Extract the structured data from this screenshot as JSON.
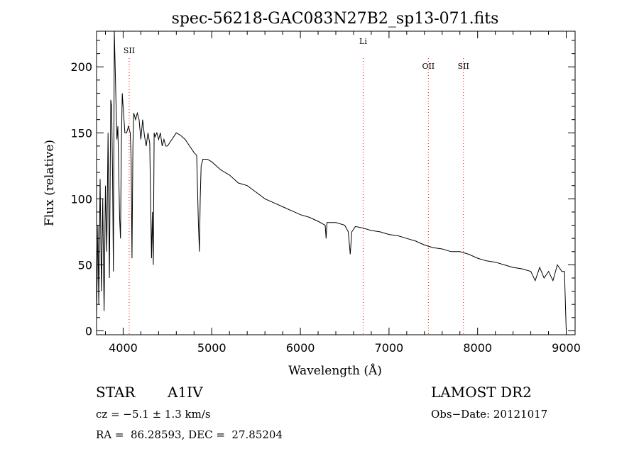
{
  "chart_data": {
    "type": "line",
    "title": "spec-56218-GAC083N27B2_sp13-071.fits",
    "xlabel": "Wavelength (Å)",
    "ylabel": "Flux (relative)",
    "xlim": [
      3700,
      9100
    ],
    "ylim": [
      -3,
      227
    ],
    "xticks": [
      4000,
      5000,
      6000,
      7000,
      8000,
      9000
    ],
    "yticks": [
      0,
      50,
      100,
      150,
      200
    ],
    "grid": false,
    "line_color": "#000000",
    "marker_color": "#ff0000",
    "line_markers": [
      {
        "label": "SII",
        "x": 4068
      },
      {
        "label": "Li",
        "x": 6708
      },
      {
        "label": "OII",
        "x": 7444
      },
      {
        "label": "SII",
        "x": 7840
      }
    ],
    "series": [
      {
        "x": [
          3700,
          3715,
          3725,
          3740,
          3755,
          3770,
          3785,
          3800,
          3815,
          3830,
          3845,
          3860,
          3870,
          3880,
          3890,
          3900,
          3910,
          3920,
          3930,
          3940,
          3950,
          3960,
          3970,
          3980,
          3990,
          4000,
          4020,
          4040,
          4060,
          4080,
          4090,
          4100,
          4110,
          4120,
          4140,
          4160,
          4180,
          4200,
          4220,
          4240,
          4260,
          4280,
          4300,
          4320,
          4330,
          4340,
          4350,
          4360,
          4380,
          4400,
          4420,
          4440,
          4460,
          4480,
          4500,
          4550,
          4600,
          4650,
          4700,
          4750,
          4800,
          4830,
          4850,
          4861,
          4870,
          4880,
          4900,
          4950,
          5000,
          5100,
          5200,
          5300,
          5400,
          5500,
          5600,
          5700,
          5800,
          5900,
          6000,
          6100,
          6200,
          6280,
          6290,
          6300,
          6400,
          6500,
          6540,
          6563,
          6580,
          6620,
          6700,
          6800,
          6900,
          7000,
          7100,
          7200,
          7300,
          7400,
          7500,
          7600,
          7700,
          7800,
          7900,
          8000,
          8100,
          8200,
          8300,
          8400,
          8500,
          8600,
          8650,
          8700,
          8750,
          8800,
          8850,
          8900,
          8950,
          8980,
          9000
        ],
        "values": [
          10,
          80,
          20,
          115,
          30,
          100,
          15,
          110,
          60,
          150,
          40,
          175,
          170,
          120,
          45,
          230,
          200,
          170,
          145,
          155,
          120,
          85,
          70,
          140,
          180,
          170,
          150,
          150,
          155,
          150,
          130,
          55,
          140,
          165,
          160,
          165,
          160,
          145,
          160,
          148,
          140,
          150,
          142,
          55,
          90,
          50,
          150,
          147,
          150,
          145,
          150,
          140,
          145,
          140,
          140,
          145,
          150,
          148,
          145,
          140,
          135,
          133,
          80,
          60,
          100,
          125,
          130,
          130,
          128,
          122,
          118,
          112,
          110,
          105,
          100,
          97,
          94,
          91,
          88,
          86,
          83,
          80,
          70,
          82,
          82,
          80,
          75,
          58,
          75,
          79,
          78,
          76,
          75,
          73,
          72,
          70,
          68,
          65,
          63,
          62,
          60,
          60,
          58,
          55,
          53,
          52,
          50,
          48,
          47,
          45,
          38,
          48,
          40,
          45,
          38,
          50,
          45,
          45,
          0
        ]
      }
    ]
  },
  "info": {
    "object": "STAR",
    "subclass": "A1IV",
    "survey": "LAMOST DR2",
    "cz": "cz = −5.1 ± 1.3 km/s",
    "obs_date": "Obs−Date: 20121017",
    "coords": "RA =  86.28593, DEC =  27.85204"
  }
}
